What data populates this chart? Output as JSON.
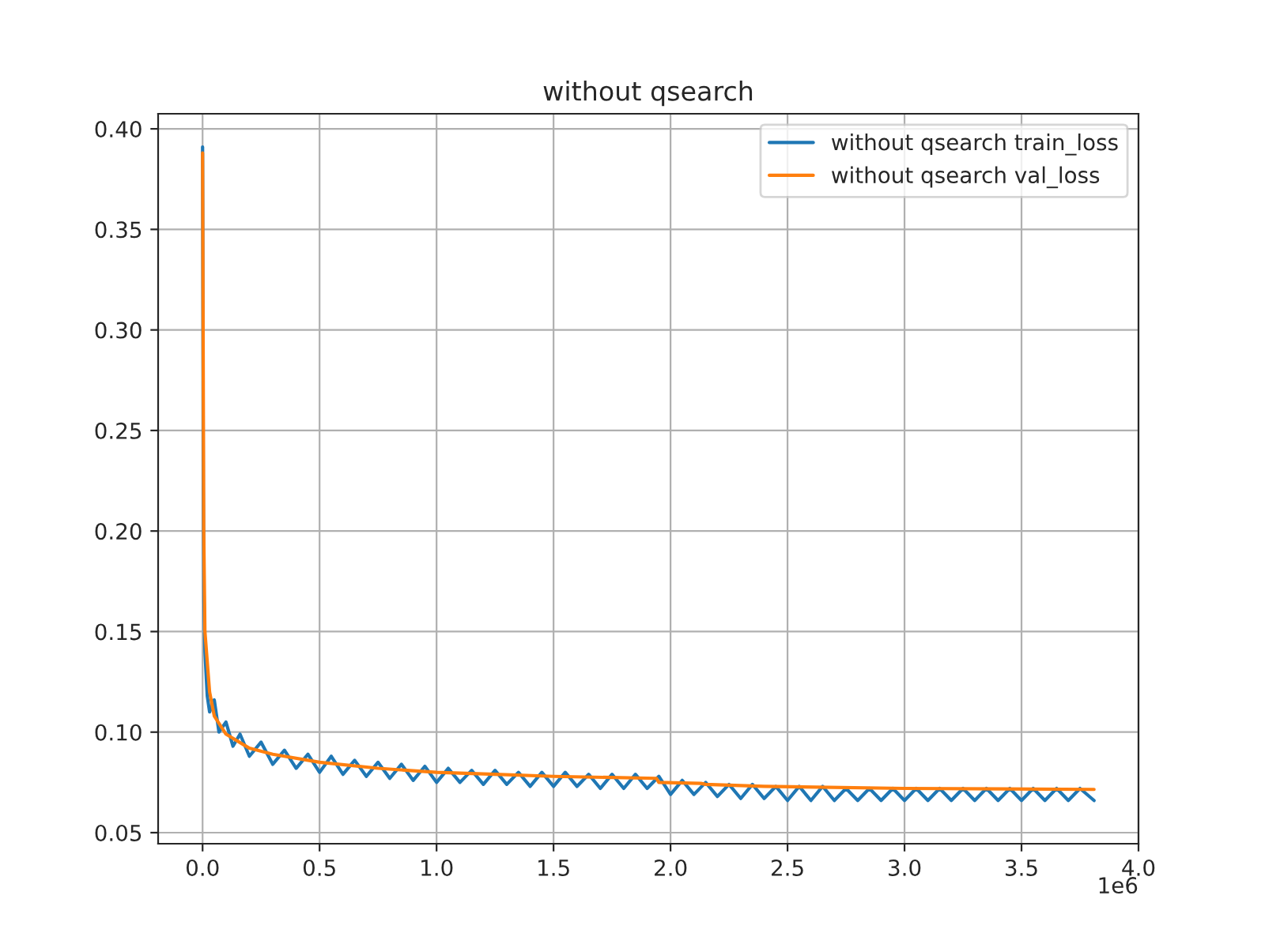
{
  "chart_data": {
    "type": "line",
    "title": "without qsearch",
    "series": [
      {
        "name": "without qsearch train_loss",
        "color": "#1f77b4",
        "x": [
          0,
          0.003,
          0.006,
          0.01,
          0.02,
          0.03,
          0.05,
          0.07,
          0.1,
          0.13,
          0.16,
          0.2,
          0.25,
          0.3,
          0.35,
          0.4,
          0.45,
          0.5,
          0.55,
          0.6,
          0.65,
          0.7,
          0.75,
          0.8,
          0.85,
          0.9,
          0.95,
          1.0,
          1.05,
          1.1,
          1.15,
          1.2,
          1.25,
          1.3,
          1.35,
          1.4,
          1.45,
          1.5,
          1.55,
          1.6,
          1.65,
          1.7,
          1.75,
          1.8,
          1.85,
          1.9,
          1.95,
          2.0,
          2.05,
          2.1,
          2.15,
          2.2,
          2.25,
          2.3,
          2.35,
          2.4,
          2.45,
          2.5,
          2.55,
          2.6,
          2.65,
          2.7,
          2.75,
          2.8,
          2.85,
          2.9,
          2.95,
          3.0,
          3.05,
          3.1,
          3.15,
          3.2,
          3.25,
          3.3,
          3.35,
          3.4,
          3.45,
          3.5,
          3.55,
          3.6,
          3.65,
          3.7,
          3.75,
          3.81
        ],
        "values": [
          0.391,
          0.22,
          0.165,
          0.14,
          0.118,
          0.11,
          0.116,
          0.1,
          0.105,
          0.093,
          0.099,
          0.088,
          0.095,
          0.084,
          0.091,
          0.082,
          0.089,
          0.08,
          0.088,
          0.079,
          0.086,
          0.078,
          0.085,
          0.077,
          0.084,
          0.076,
          0.083,
          0.075,
          0.082,
          0.075,
          0.081,
          0.074,
          0.081,
          0.074,
          0.08,
          0.073,
          0.08,
          0.073,
          0.08,
          0.073,
          0.079,
          0.072,
          0.079,
          0.072,
          0.079,
          0.072,
          0.078,
          0.069,
          0.076,
          0.069,
          0.075,
          0.068,
          0.074,
          0.067,
          0.074,
          0.067,
          0.073,
          0.066,
          0.073,
          0.066,
          0.073,
          0.066,
          0.072,
          0.066,
          0.072,
          0.066,
          0.072,
          0.066,
          0.072,
          0.066,
          0.072,
          0.066,
          0.072,
          0.066,
          0.072,
          0.066,
          0.072,
          0.066,
          0.072,
          0.066,
          0.072,
          0.066,
          0.072,
          0.066
        ]
      },
      {
        "name": "without qsearch val_loss",
        "color": "#ff7f0e",
        "x": [
          0,
          0.005,
          0.01,
          0.03,
          0.05,
          0.1,
          0.2,
          0.3,
          0.5,
          0.75,
          1.0,
          1.25,
          1.5,
          1.94,
          1.95,
          2.13,
          2.15,
          2.4,
          3.0,
          3.81
        ],
        "values": [
          0.388,
          0.2,
          0.15,
          0.12,
          0.108,
          0.099,
          0.092,
          0.089,
          0.085,
          0.082,
          0.08,
          0.079,
          0.078,
          0.077,
          0.075,
          0.0745,
          0.074,
          0.073,
          0.072,
          0.0715
        ]
      }
    ],
    "xlim": [
      -0.19,
      4.0
    ],
    "xticks": [
      {
        "value": 0,
        "label": "0.0"
      },
      0.5,
      {
        "value": 1,
        "label": "1.0"
      },
      1.5,
      {
        "value": 2,
        "label": "2.0"
      },
      2.5,
      {
        "value": 3,
        "label": "3.0"
      },
      3.5,
      {
        "value": 4,
        "label": "4.0"
      }
    ],
    "ylim": [
      0.0445,
      0.4075
    ],
    "yticks": [
      {
        "value": 0.05,
        "label": "0.05"
      },
      {
        "value": 0.1,
        "label": "0.10"
      },
      {
        "value": 0.15,
        "label": "0.15"
      },
      {
        "value": 0.2,
        "label": "0.20"
      },
      {
        "value": 0.25,
        "label": "0.25"
      },
      {
        "value": 0.3,
        "label": "0.30"
      },
      {
        "value": 0.35,
        "label": "0.35"
      },
      {
        "value": 0.4,
        "label": "0.40"
      }
    ],
    "annotations": [
      "1e6"
    ],
    "grid": true,
    "legend": "top right"
  }
}
